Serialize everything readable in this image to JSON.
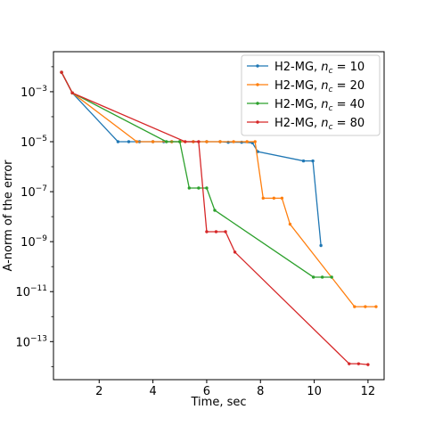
{
  "chart_data": {
    "type": "line",
    "title": "",
    "xlabel": "Time, sec",
    "ylabel": "A-norm of the error",
    "yscale": "log",
    "xlim": [
      0.3,
      12.6
    ],
    "ylim": [
      3e-15,
      0.04
    ],
    "xticks": [
      2,
      4,
      6,
      8,
      10,
      12
    ],
    "xtick_labels": [
      "2",
      "4",
      "6",
      "8",
      "10",
      "12"
    ],
    "yticks": [
      1e-13,
      1e-11,
      1e-09,
      1e-07,
      1e-05,
      0.001
    ],
    "ytick_labels": [
      {
        "base": "10",
        "exp": "−13"
      },
      {
        "base": "10",
        "exp": "−11"
      },
      {
        "base": "10",
        "exp": "−9"
      },
      {
        "base": "10",
        "exp": "−7"
      },
      {
        "base": "10",
        "exp": "−5"
      },
      {
        "base": "10",
        "exp": "−3"
      }
    ],
    "grid": false,
    "legend_position": "top-right",
    "series": [
      {
        "legend_prefix": "H2-MG, ",
        "legend_var": "n",
        "legend_sub": "c",
        "legend_suffix": " = 10",
        "color": "#1f77b4",
        "points": [
          [
            0.6,
            0.006
          ],
          [
            1.0,
            0.0009
          ],
          [
            2.7,
            1e-05
          ],
          [
            3.1,
            1e-05
          ],
          [
            3.5,
            1e-05
          ],
          [
            4.0,
            1e-05
          ],
          [
            4.4,
            1e-05
          ],
          [
            4.7,
            1e-05
          ],
          [
            5.0,
            1e-05
          ],
          [
            5.5,
            1e-05
          ],
          [
            6.0,
            1e-05
          ],
          [
            6.5,
            1e-05
          ],
          [
            6.8,
            9.5e-06
          ],
          [
            7.3,
            9.5e-06
          ],
          [
            7.7,
            9e-06
          ],
          [
            7.9,
            4e-06
          ],
          [
            9.6,
            1.7e-06
          ],
          [
            9.95,
            1.7e-06
          ],
          [
            10.25,
            7e-10
          ]
        ]
      },
      {
        "legend_prefix": "H2-MG, ",
        "legend_var": "n",
        "legend_sub": "c",
        "legend_suffix": " = 20",
        "color": "#ff7f0e",
        "points": [
          [
            0.6,
            0.006
          ],
          [
            1.0,
            0.0009
          ],
          [
            3.4,
            1e-05
          ],
          [
            4.0,
            1e-05
          ],
          [
            4.7,
            1e-05
          ],
          [
            5.0,
            1e-05
          ],
          [
            5.5,
            1e-05
          ],
          [
            6.0,
            1e-05
          ],
          [
            6.5,
            1e-05
          ],
          [
            7.0,
            1e-05
          ],
          [
            7.5,
            1e-05
          ],
          [
            7.8,
            1e-05
          ],
          [
            8.1,
            5.5e-08
          ],
          [
            8.5,
            5.5e-08
          ],
          [
            8.8,
            5.5e-08
          ],
          [
            9.1,
            5e-09
          ],
          [
            11.5,
            2.5e-12
          ],
          [
            11.9,
            2.5e-12
          ],
          [
            12.3,
            2.5e-12
          ]
        ]
      },
      {
        "legend_prefix": "H2-MG, ",
        "legend_var": "n",
        "legend_sub": "c",
        "legend_suffix": " = 40",
        "color": "#2ca02c",
        "points": [
          [
            0.6,
            0.006
          ],
          [
            1.0,
            0.0009
          ],
          [
            4.5,
            1e-05
          ],
          [
            5.0,
            1e-05
          ],
          [
            5.35,
            1.4e-07
          ],
          [
            5.7,
            1.4e-07
          ],
          [
            6.0,
            1.4e-07
          ],
          [
            6.3,
            1.8e-08
          ],
          [
            9.97,
            3.8e-11
          ],
          [
            10.3,
            3.8e-11
          ],
          [
            10.65,
            3.8e-11
          ]
        ]
      },
      {
        "legend_prefix": "H2-MG, ",
        "legend_var": "n",
        "legend_sub": "c",
        "legend_suffix": " = 80",
        "color": "#d62728",
        "points": [
          [
            0.6,
            0.006
          ],
          [
            1.0,
            0.0009
          ],
          [
            5.2,
            1e-05
          ],
          [
            5.7,
            1e-05
          ],
          [
            6.0,
            2.5e-09
          ],
          [
            6.35,
            2.5e-09
          ],
          [
            6.7,
            2.5e-09
          ],
          [
            7.05,
            3.8e-10
          ],
          [
            11.3,
            1.3e-14
          ],
          [
            11.65,
            1.3e-14
          ],
          [
            12.0,
            1.2e-14
          ]
        ]
      }
    ]
  }
}
